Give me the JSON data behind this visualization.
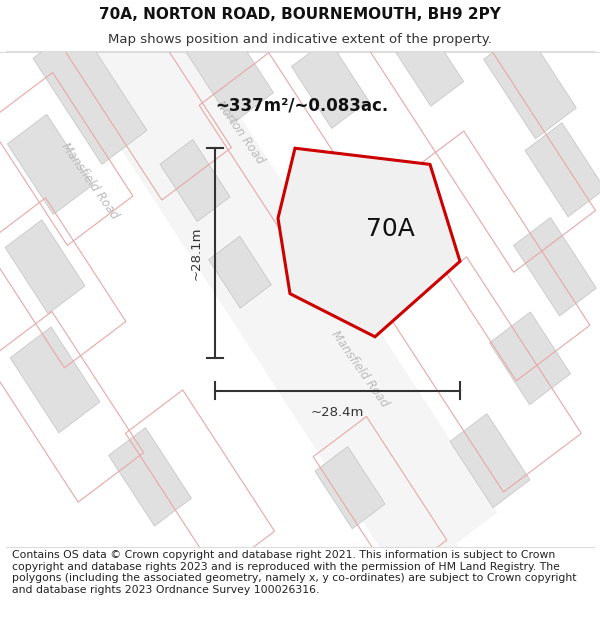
{
  "title_line1": "70A, NORTON ROAD, BOURNEMOUTH, BH9 2PY",
  "title_line2": "Map shows position and indicative extent of the property.",
  "footer_text": "Contains OS data © Crown copyright and database right 2021. This information is subject to Crown copyright and database rights 2023 and is reproduced with the permission of HM Land Registry. The polygons (including the associated geometry, namely x, y co-ordinates) are subject to Crown copyright and database rights 2023 Ordnance Survey 100026316.",
  "area_label": "~337m²/~0.083ac.",
  "property_label": "70A",
  "dim_height": "~28.1m",
  "dim_width": "~28.4m",
  "map_bg": "#ffffff",
  "fig_bg": "#ffffff",
  "property_fill": "#f0f0f0",
  "property_stroke": "#cc0000",
  "block_fill": "#e0e0e0",
  "block_stroke": "#c8c8c8",
  "pink_stroke": "#e8a8a8",
  "dim_color": "#333333",
  "road_label_color": "#bbbbbb",
  "title_fontsize": 11,
  "subtitle_fontsize": 9.5,
  "footer_fontsize": 7.8,
  "road_fill": "#f5f5f5",
  "road_edge": "#d8d8d8"
}
